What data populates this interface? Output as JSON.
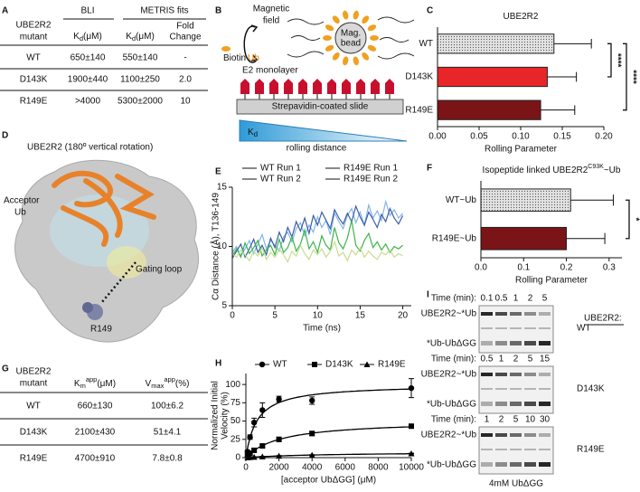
{
  "panel_labels": {
    "a": "A",
    "b": "B",
    "c": "C",
    "d": "D",
    "e": "E",
    "f": "F",
    "g": "G",
    "h": "H",
    "i": "I"
  },
  "panel_a": {
    "mutant_header": [
      "UBE2R2",
      "mutant"
    ],
    "group_headers": [
      "BLI",
      "METRIS fits"
    ],
    "kd": {
      "main": "K",
      "sub": "d",
      "unit": "(μM)"
    },
    "fold_header": [
      "Fold",
      "Change"
    ],
    "rows": [
      [
        "WT",
        "650±140",
        "550±140",
        "-"
      ],
      [
        "D143K",
        "1900±440",
        "1100±250",
        "2.0"
      ],
      [
        "R149E",
        ">4000",
        "5300±2000",
        "10"
      ]
    ]
  },
  "panel_b": {
    "field": [
      "Magnetic",
      "field"
    ],
    "bead": [
      "Mag.",
      "bead"
    ],
    "biotin": "Biotin",
    "ub": "Ub",
    "monolayer": "E2 monolayer",
    "slide": "Strepavidin-coated slide",
    "kd": {
      "main": "K",
      "sub": "d"
    },
    "distance": "rolling distance"
  },
  "panel_d": {
    "title": "UBE2R2 (180º vertical rotation)",
    "acceptor": [
      "Acceptor",
      "Ub"
    ],
    "gating": "Gating loop",
    "residue": "R149"
  },
  "panel_g": {
    "mutant_header": [
      "UBE2R2",
      "mutant"
    ],
    "km": {
      "main": "K",
      "sub": "m",
      "sup": "app",
      "unit": "(μM)"
    },
    "vmax": {
      "main": "V",
      "sub": "max",
      "sup": "app",
      "unit": "(%)"
    },
    "rows": [
      [
        "WT",
        "660±130",
        "100±6.2"
      ],
      [
        "D143K",
        "2100±430",
        "51±4.1"
      ],
      [
        "R149E",
        "4700±910",
        "7.8±0.8"
      ]
    ]
  },
  "panel_i": {
    "header": "UBE2R2:",
    "time_label": "Time (min):",
    "upper_band": "UBE2R2~*Ub",
    "lower_band": "*Ub-UbΔGG",
    "footer": "4mM UbΔGG",
    "gels": [
      {
        "mutant": "WT",
        "times": [
          "0.1",
          "0.5",
          "1",
          "2",
          "5"
        ],
        "time_colors": [
          "#000000",
          "#000000",
          "#000000",
          "#000000",
          "#000000"
        ]
      },
      {
        "mutant": "D143K",
        "times": [
          "0.5",
          "1",
          "2",
          "5",
          "15"
        ],
        "time_colors": [
          "#000000",
          "#000000",
          "#000000",
          "#000000",
          "#c0392b"
        ]
      },
      {
        "mutant": "R149E",
        "times": [
          "1",
          "2",
          "5",
          "10",
          "30"
        ],
        "time_colors": [
          "#000000",
          "#000000",
          "#000000",
          "#c0392b",
          "#c0392b"
        ]
      }
    ]
  },
  "chart_data": [
    {
      "type": "bar",
      "orientation": "horizontal",
      "title": "UBE2R2",
      "categories": [
        "WT",
        "D143K",
        "R149E"
      ],
      "values": [
        0.14,
        0.132,
        0.124
      ],
      "errors": [
        0.045,
        0.035,
        0.041
      ],
      "colors": [
        "#e2e2e2",
        "#e8262a",
        "#7b1416"
      ],
      "pattern": [
        "dots",
        "solid",
        "solid"
      ],
      "xlim": [
        0,
        0.2
      ],
      "xticks": [
        {
          "value": 0,
          "label": "0.00"
        },
        0.05,
        {
          "value": 0.1,
          "label": "0.10"
        },
        0.15,
        {
          "value": 0.2,
          "label": "0.20"
        }
      ],
      "xlabel": "Rolling Parameter",
      "significance": [
        "****",
        "****"
      ]
    },
    {
      "type": "line",
      "xlabel": "Time (ns)",
      "ylabel": "Cα Distance (Å), T136-149",
      "xlim": [
        0,
        21
      ],
      "xticks": [
        0,
        5,
        10,
        15,
        20
      ],
      "ylim": [
        5,
        15
      ],
      "yticks": [
        5,
        10,
        15
      ],
      "x": [
        0,
        0.5,
        1,
        1.5,
        2,
        2.5,
        3,
        3.5,
        4,
        4.5,
        5,
        5.5,
        6,
        6.5,
        7,
        7.5,
        8,
        8.5,
        9,
        9.5,
        10,
        10.5,
        11,
        11.5,
        12,
        12.5,
        13,
        13.5,
        14,
        14.5,
        15,
        15.5,
        16,
        16.5,
        17,
        17.5,
        18,
        18.5,
        19,
        19.5,
        20
      ],
      "series": [
        {
          "name": "WT Run 1",
          "color": "#84b6e6",
          "values": [
            9.5,
            10,
            9.2,
            9.8,
            10.5,
            9.4,
            10.2,
            11,
            9.8,
            10.5,
            10.1,
            9.6,
            10.8,
            11.2,
            10.4,
            11.5,
            12,
            10.9,
            11.8,
            11.2,
            12.5,
            11.6,
            12.2,
            11,
            12.8,
            12.1,
            11.5,
            12.6,
            13.2,
            12,
            12.9,
            11.8,
            13.5,
            12.4,
            13,
            12.2,
            13.8,
            12.6,
            13.1,
            12.4,
            12.8
          ]
        },
        {
          "name": "WT Run 2",
          "color": "#3b5ea8",
          "values": [
            9,
            9.6,
            10.2,
            9.1,
            9.8,
            10.6,
            9.5,
            10.1,
            9.3,
            10.7,
            9.9,
            11.2,
            10.4,
            11.6,
            10.8,
            12.1,
            11.3,
            12.4,
            11.1,
            12.6,
            11.8,
            12.9,
            12.2,
            11.5,
            13.1,
            12.4,
            11.9,
            12.8,
            12.1,
            13.4,
            12.5,
            11.8,
            12.9,
            12.3,
            11.6,
            12.7,
            12.1,
            13.2,
            12.4,
            11.9,
            12.6
          ]
        },
        {
          "name": "R149E Run 1",
          "color": "#3cb54a",
          "values": [
            9.2,
            9.8,
            9.1,
            10.3,
            9.4,
            9.9,
            10.5,
            9.2,
            9.7,
            10.1,
            9.3,
            10.6,
            9.5,
            9.9,
            10.8,
            9.6,
            10.2,
            11.4,
            9.8,
            10.4,
            9.5,
            10.9,
            10.1,
            9.7,
            11.6,
            10.3,
            9.8,
            10.7,
            12.2,
            10.1,
            9.6,
            10.5,
            11.1,
            9.9,
            10.4,
            9.7,
            10.2,
            9.5,
            10,
            9.8,
            10.1
          ]
        },
        {
          "name": "R149E Run 2",
          "color": "#c6de8e",
          "values": [
            9.4,
            9.1,
            9.7,
            9.3,
            8.8,
            9.6,
            9.2,
            9.9,
            8.9,
            9.5,
            9.1,
            9.8,
            9.3,
            8.7,
            9.6,
            9.2,
            10.1,
            9.4,
            8.9,
            9.7,
            9.3,
            9.8,
            9.1,
            9.6,
            10.4,
            9.2,
            9.5,
            8.8,
            9.7,
            9.3,
            9.9,
            9.1,
            9.6,
            9.2,
            8.9,
            9.5,
            9.3,
            9.7,
            9.1,
            9.4,
            9.2
          ]
        }
      ]
    },
    {
      "type": "bar",
      "orientation": "horizontal",
      "title": "Isopeptide linked UBE2R2",
      "title_sup": "C93K",
      "title_suffix": "~Ub",
      "categories": [
        "WT~Ub",
        "R149E~Ub"
      ],
      "values": [
        0.21,
        0.2
      ],
      "errors": [
        0.1,
        0.09
      ],
      "colors": [
        "#e2e2e2",
        "#7b1416"
      ],
      "pattern": [
        "dots",
        "solid"
      ],
      "xlim": [
        0,
        0.33
      ],
      "xticks": [
        {
          "value": 0,
          "label": "0.0"
        },
        0.1,
        0.2,
        0.3
      ],
      "xlabel": "Rolling Parameter",
      "significance": [
        "*"
      ]
    },
    {
      "type": "scatter",
      "xlabel": "[acceptor UbΔGG] (μM)",
      "ylabel": [
        "Normalized Initial",
        "Velocity (%)"
      ],
      "xlim": [
        0,
        10000
      ],
      "xticks": [
        0,
        2000,
        4000,
        6000,
        8000,
        10000
      ],
      "ylim": [
        0,
        115
      ],
      "yticks": [
        0,
        25,
        50,
        75,
        100
      ],
      "series": [
        {
          "name": "WT",
          "marker": "circle",
          "color": "#000000",
          "x": [
            100,
            250,
            500,
            1000,
            2000,
            4000,
            10000
          ],
          "values": [
            8,
            28,
            48,
            65,
            80,
            78,
            95
          ],
          "errors": [
            2,
            3,
            6,
            10,
            4,
            5,
            13
          ],
          "km": 660,
          "vmax": 100
        },
        {
          "name": "D143K",
          "marker": "square",
          "color": "#000000",
          "x": [
            100,
            250,
            500,
            1000,
            2000,
            4000,
            10000
          ],
          "values": [
            3,
            6,
            10,
            16,
            25,
            33,
            43
          ],
          "errors": [
            1,
            1,
            2,
            2,
            3,
            3,
            2
          ],
          "km": 2100,
          "vmax": 51
        },
        {
          "name": "R149E",
          "marker": "triangle",
          "color": "#000000",
          "x": [
            100,
            250,
            500,
            1000,
            2000,
            4000,
            10000
          ],
          "values": [
            0.2,
            0.4,
            0.8,
            1.4,
            2.3,
            3.5,
            5.6
          ],
          "errors": [
            0.5,
            0.5,
            0.5,
            0.5,
            0.5,
            0.5,
            0.5
          ],
          "km": 4700,
          "vmax": 7.8
        }
      ]
    }
  ]
}
